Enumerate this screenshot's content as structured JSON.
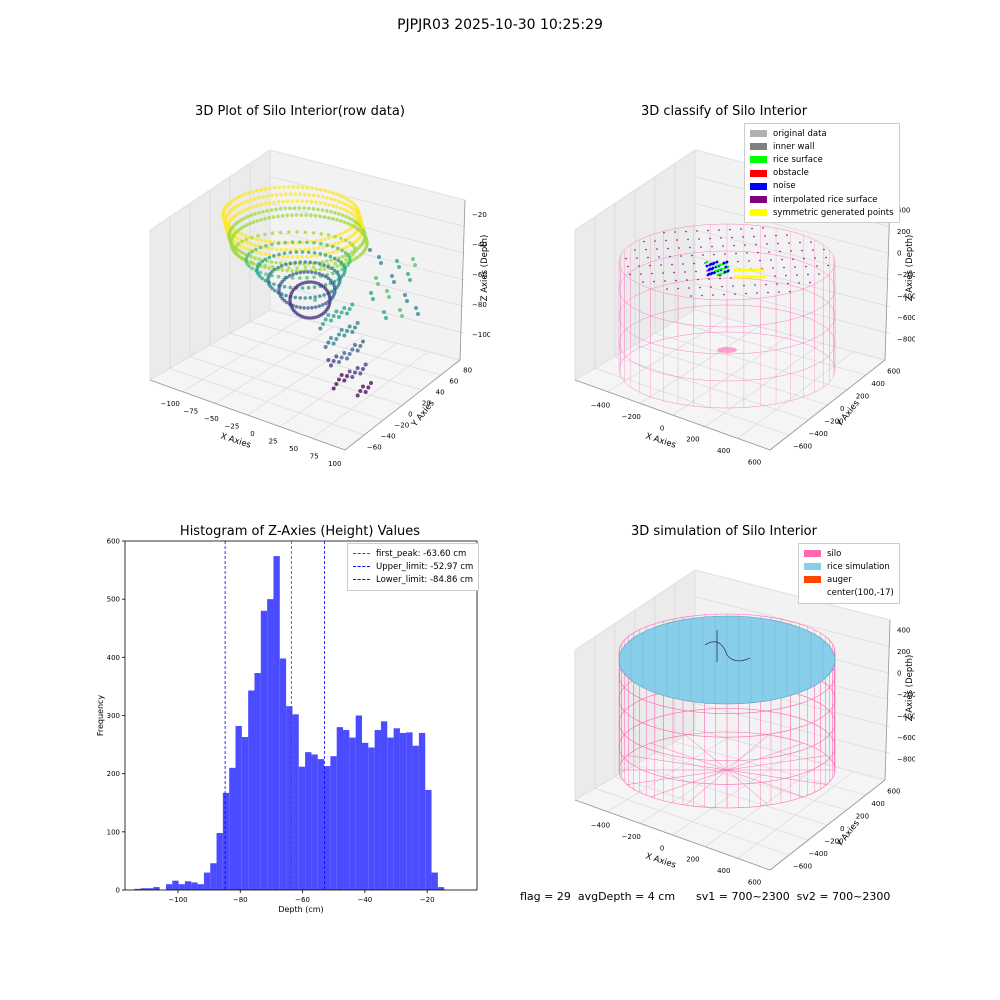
{
  "suptitle": "PJPJR03 2025-10-30 10:25:29",
  "footer": "flag = 29  avgDepth = 4 cm      sv1 = 700~2300  sv2 = 700~2300",
  "colors": {
    "original_data": "#b0b0b0",
    "inner_wall": "#808080",
    "rice_surface": "#00ff00",
    "obstacle": "#ff0000",
    "noise": "#0000ff",
    "interpolated": "#800080",
    "symmetric": "#ffff00",
    "silo": "#ff69b4",
    "rice_sim": "#87ceeb",
    "auger": "#ff4500",
    "hist_bar": "#4b4bff",
    "peak_line": "#ff0000",
    "limit_line": "#0000ff"
  },
  "chart_data": [
    {
      "type": "scatter",
      "title": "3D Plot of Silo Interior(row data)",
      "xlabel": "X Axies",
      "ylabel": "Y Axies",
      "zlabel": "Z Axies (Depth)",
      "xticks": [
        "−100",
        "−75",
        "−50",
        "−25",
        "0",
        "25",
        "50",
        "75",
        "100"
      ],
      "yticks": [
        "−60",
        "−40",
        "−20",
        "0",
        "20",
        "40",
        "60",
        "80"
      ],
      "zticks": [
        "−100",
        "−80",
        "−60",
        "−40",
        "−20"
      ],
      "colormap": "viridis"
    },
    {
      "type": "scatter",
      "title": "3D classify of Silo Interior",
      "xlabel": "X Axies",
      "ylabel": "Y Axies",
      "zlabel": "Z Axies (Depth)",
      "xticks": [
        "−400",
        "−200",
        "0",
        "200",
        "400",
        "600"
      ],
      "yticks": [
        "−600",
        "−400",
        "−200",
        "0",
        "200",
        "400",
        "600"
      ],
      "zticks": [
        "−800",
        "−600",
        "−400",
        "−200",
        "0",
        "200",
        "400"
      ],
      "legend": [
        {
          "label": "original data",
          "color": "#b0b0b0"
        },
        {
          "label": "inner wall",
          "color": "#808080"
        },
        {
          "label": "rice surface",
          "color": "#00ff00"
        },
        {
          "label": "obstacle",
          "color": "#ff0000"
        },
        {
          "label": "noise",
          "color": "#0000ff"
        },
        {
          "label": "interpolated rice surface",
          "color": "#800080"
        },
        {
          "label": "symmetric generated points",
          "color": "#ffff00"
        }
      ]
    },
    {
      "type": "bar",
      "title": "Histogram of Z-Axies (Height) Values",
      "xlabel": "Depth (cm)",
      "ylabel": "Frequency",
      "xlim": [
        -117,
        -4
      ],
      "ylim": [
        0,
        600
      ],
      "xticks": [
        -100,
        -80,
        -60,
        -40,
        -20
      ],
      "xtick_labels": [
        "−100",
        "−80",
        "−60",
        "−40",
        "−20"
      ],
      "yticks": [
        0,
        100,
        200,
        300,
        400,
        500,
        600
      ],
      "bin_start": -114.0,
      "bin_width": 2.03,
      "values": [
        2,
        3,
        3,
        5,
        0,
        10,
        16,
        10,
        15,
        13,
        10,
        30,
        46,
        98,
        167,
        210,
        282,
        263,
        343,
        373,
        480,
        500,
        574,
        398,
        316,
        302,
        212,
        237,
        233,
        225,
        213,
        230,
        280,
        275,
        262,
        300,
        253,
        245,
        275,
        290,
        262,
        278,
        270,
        271,
        248,
        270,
        172,
        30,
        5
      ],
      "lines": [
        {
          "label": "first_peak: -63.60 cm",
          "x": -63.6,
          "color": "#ff0000"
        },
        {
          "label": "Upper_limit: -52.97 cm",
          "x": -52.97,
          "color": "#0000ff"
        },
        {
          "label": "Lower_limit: -84.86 cm",
          "x": -84.86,
          "color": "#0000ff"
        }
      ]
    },
    {
      "type": "scatter",
      "title": "3D simulation of Silo Interior",
      "xlabel": "X Axies",
      "ylabel": "Y Axies",
      "zlabel": "Z Axies (Depth)",
      "xticks": [
        "−400",
        "−200",
        "0",
        "200",
        "400",
        "600"
      ],
      "yticks": [
        "−600",
        "−400",
        "−200",
        "0",
        "200",
        "400",
        "600"
      ],
      "zticks": [
        "−800",
        "−600",
        "−400",
        "−200",
        "0",
        "200",
        "400"
      ],
      "legend": [
        {
          "label": "silo",
          "color": "#ff69b4"
        },
        {
          "label": "rice simulation",
          "color": "#87ceeb"
        },
        {
          "label": "auger",
          "color": "#ff4500"
        },
        {
          "label": "center(100,-17)",
          "color": ""
        }
      ]
    }
  ]
}
